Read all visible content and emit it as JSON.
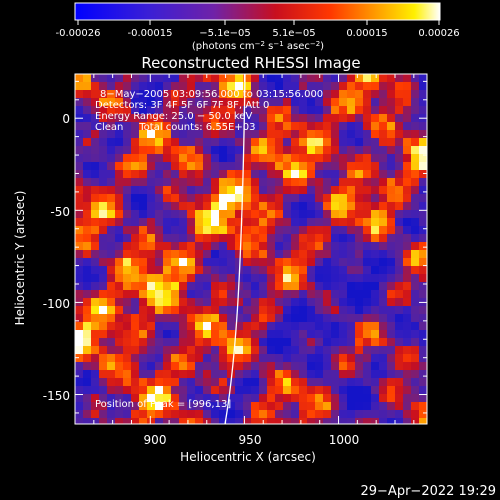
{
  "colorbar": {
    "ticks": [
      "-0.00026",
      "-0.00015",
      "−5.1e−05",
      "5.1e−05",
      "0.00015",
      "0.00026"
    ],
    "unit_main": "(photons cm",
    "unit_exp1": "−2",
    "unit_mid": " s",
    "unit_exp2": "−1",
    "unit_tail": " asec",
    "unit_exp3": "−2",
    "unit_close": ")",
    "range": [
      -0.00026,
      0.00026
    ]
  },
  "annotations": {
    "time_range": "8−May−2005 03:09:56.000 to 03:15:56.000",
    "detectors": "Detectors: 3F 4F 5F 6F 7F 8F, Att 0",
    "energy": "Energy Range: 25.0 − 50.0 keV",
    "clean": "Clean     Total counts: 6.55E+03",
    "peak": "Position of Peak = [996,13]"
  },
  "footer": {
    "timestamp": "29−Apr−2022 19:29"
  },
  "colors": {
    "background": "#000000",
    "text": "#ffffff",
    "limb": "#ffffff"
  },
  "chart_data": {
    "type": "heatmap",
    "title": "Reconstructed RHESSI Image",
    "xlabel": "Heliocentric X (arcsec)",
    "ylabel": "Heliocentric Y (arcsec)",
    "xlim": [
      860,
      1047
    ],
    "ylim": [
      -166,
      24
    ],
    "xticks": [
      900,
      950,
      1000
    ],
    "yticks": [
      0,
      -50,
      -100,
      -150
    ],
    "colormap": "rainbow-to-white (blue–purple–red–orange–yellow–white)",
    "color_range": [
      -0.00026,
      0.00026
    ],
    "peak_position": [
      996,
      13
    ]
  }
}
